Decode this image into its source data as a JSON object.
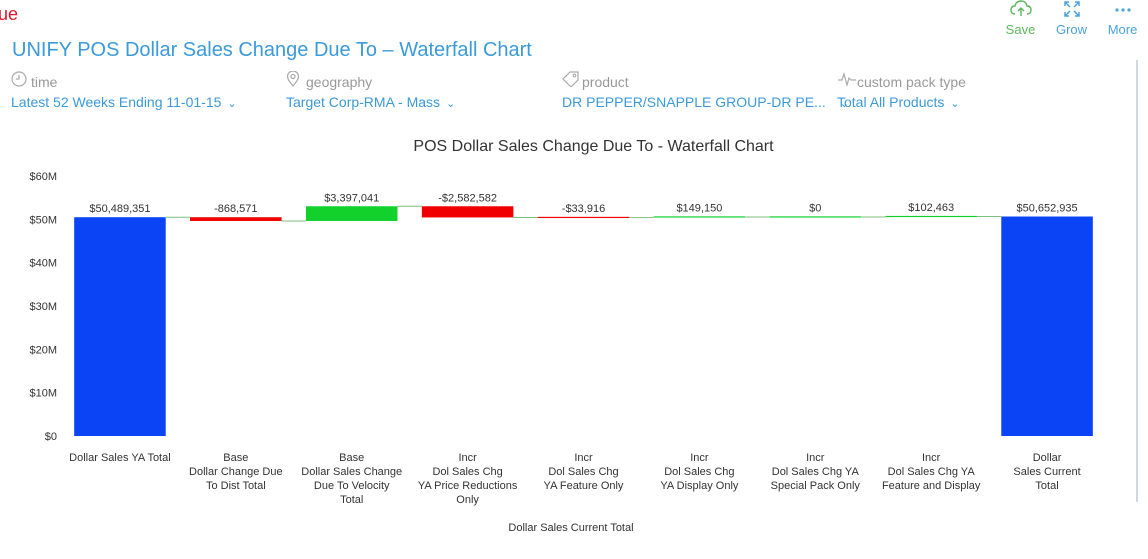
{
  "page": {
    "edge_text": "ue",
    "title": "UNIFY POS Dollar Sales Change Due To – Waterfall Chart"
  },
  "toolbar": {
    "save_label": "Save",
    "grow_label": "Grow",
    "more_label": "More"
  },
  "filters": [
    {
      "label": "time",
      "value": "Latest 52 Weeks Ending 11-01-15",
      "icon": "clock-icon"
    },
    {
      "label": "geography",
      "value": "Target Corp-RMA - Mass",
      "icon": "map-pin-icon"
    },
    {
      "label": "product",
      "value": "DR PEPPER/SNAPPLE GROUP-DR PE...",
      "icon": "tag-icon"
    },
    {
      "label": "custom pack type",
      "value": "Total All Products",
      "icon": "pulse-icon"
    }
  ],
  "colors": {
    "total": "#0b44f5",
    "increase": "#12d12a",
    "decrease": "#f00000",
    "accent": "#3b9ad9"
  },
  "chart_data": {
    "type": "bar",
    "subtype": "waterfall",
    "title": "POS Dollar Sales Change Due To - Waterfall Chart",
    "xlabel": "Dollar Sales Current Total",
    "ylabel": "",
    "ylim": [
      0,
      60000000
    ],
    "yticks": [
      {
        "value": 0,
        "label": "$0"
      },
      {
        "value": 10000000,
        "label": "$10M"
      },
      {
        "value": 20000000,
        "label": "$20M"
      },
      {
        "value": 30000000,
        "label": "$30M"
      },
      {
        "value": 40000000,
        "label": "$40M"
      },
      {
        "value": 50000000,
        "label": "$50M"
      },
      {
        "value": 60000000,
        "label": "$60M"
      }
    ],
    "categories": [
      [
        "Dollar Sales YA Total"
      ],
      [
        "Base",
        "Dollar Change Due",
        "To Dist Total"
      ],
      [
        "Base",
        "Dollar Sales Change",
        "Due To Velocity",
        "Total"
      ],
      [
        "Incr",
        "Dol Sales Chg",
        "YA Price Reductions",
        "Only"
      ],
      [
        "Incr",
        "Dol Sales Chg",
        "YA Feature Only"
      ],
      [
        "Incr",
        "Dol Sales Chg",
        "YA Display Only"
      ],
      [
        "Incr",
        "Dol Sales Chg YA",
        "Special Pack Only"
      ],
      [
        "Incr",
        "Dol Sales Chg YA",
        "Feature and Display"
      ],
      [
        "Dollar",
        "Sales Current",
        "Total"
      ]
    ],
    "values": [
      50489351,
      -868571,
      3397041,
      -2582582,
      -33916,
      149150,
      0,
      102463,
      50652935
    ],
    "kinds": [
      "total",
      "change",
      "change",
      "change",
      "change",
      "change",
      "change",
      "change",
      "total"
    ],
    "data_labels": [
      "$50,489,351",
      "-868,571",
      "$3,397,041",
      "-$2,582,582",
      "-$33,916",
      "$149,150",
      "$0",
      "$102,463",
      "$50,652,935"
    ],
    "grid": false,
    "legend": "none"
  }
}
